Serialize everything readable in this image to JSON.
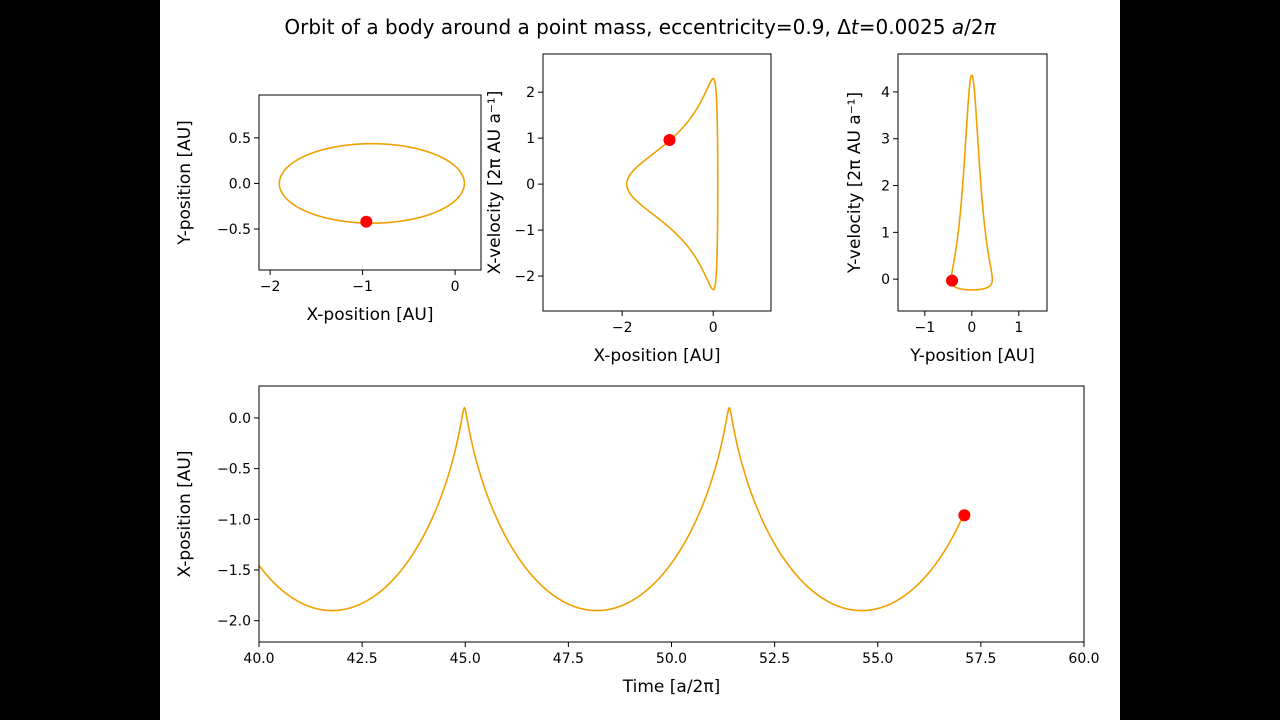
{
  "title_parts": [
    {
      "text": "Orbit of a body around a point mass, eccentricity=0.9, Δ",
      "italic": false
    },
    {
      "text": "t",
      "italic": true
    },
    {
      "text": "=0.0025 ",
      "italic": false
    },
    {
      "text": "a",
      "italic": true
    },
    {
      "text": "/2",
      "italic": false
    },
    {
      "text": "π",
      "italic": true
    }
  ],
  "colors": {
    "curve": "#f0a000",
    "marker": "#ff0000",
    "background": "#ffffff",
    "letterbox": "#000000"
  },
  "chart_data": [
    {
      "type": "line",
      "xlabel": "X-position [AU]",
      "ylabel": "Y-position [AU]",
      "xlim": [
        -2.12,
        0.28
      ],
      "ylim": [
        -0.95,
        0.97
      ],
      "xticks": [
        {
          "v": -2,
          "label": "−2"
        },
        {
          "v": -1,
          "label": "−1"
        },
        {
          "v": 0,
          "label": "0"
        }
      ],
      "yticks": [
        {
          "v": 0.5,
          "label": "0.5"
        },
        {
          "v": 0,
          "label": "0.0"
        },
        {
          "v": -0.5,
          "label": "−0.5"
        }
      ],
      "x_var": "x",
      "y_var": "y",
      "marker": {
        "x": -0.96,
        "y": -0.42
      }
    },
    {
      "type": "line",
      "xlabel": "X-position [AU]",
      "ylabel": "X-velocity [2π AU a⁻¹]",
      "xlim": [
        -3.74,
        1.27
      ],
      "ylim": [
        -2.76,
        2.83
      ],
      "xticks": [
        {
          "v": -2,
          "label": "−2"
        },
        {
          "v": 0,
          "label": "0"
        }
      ],
      "yticks": [
        {
          "v": 2,
          "label": "2"
        },
        {
          "v": 1,
          "label": "1"
        },
        {
          "v": 0,
          "label": "0"
        },
        {
          "v": -1,
          "label": "−1"
        },
        {
          "v": -2,
          "label": "−2"
        }
      ],
      "x_var": "x",
      "y_var": "vx",
      "marker": {
        "x": -0.96,
        "y": 0.96
      }
    },
    {
      "type": "line",
      "xlabel": "Y-position [AU]",
      "ylabel": "Y-velocity [2π AU a⁻¹]",
      "xlim": [
        -1.57,
        1.6
      ],
      "ylim": [
        -0.68,
        4.81
      ],
      "xticks": [
        {
          "v": -1,
          "label": "−1"
        },
        {
          "v": 0,
          "label": "0"
        },
        {
          "v": 1,
          "label": "1"
        }
      ],
      "yticks": [
        {
          "v": 4,
          "label": "4"
        },
        {
          "v": 3,
          "label": "3"
        },
        {
          "v": 2,
          "label": "2"
        },
        {
          "v": 1,
          "label": "1"
        },
        {
          "v": 0,
          "label": "0"
        }
      ],
      "x_var": "y",
      "y_var": "vy",
      "marker": {
        "x": -0.42,
        "y": -0.03
      }
    },
    {
      "type": "line",
      "xlabel": "Time [a/2π]",
      "ylabel": "X-position [AU]",
      "xlim": [
        40,
        60
      ],
      "ylim": [
        -2.21,
        0.315
      ],
      "xticks": [
        {
          "v": 40,
          "label": "40.0"
        },
        {
          "v": 42.5,
          "label": "42.5"
        },
        {
          "v": 45,
          "label": "45.0"
        },
        {
          "v": 47.5,
          "label": "47.5"
        },
        {
          "v": 50,
          "label": "50.0"
        },
        {
          "v": 52.5,
          "label": "52.5"
        },
        {
          "v": 55,
          "label": "55.0"
        },
        {
          "v": 57.5,
          "label": "57.5"
        },
        {
          "v": 60,
          "label": "60.0"
        }
      ],
      "yticks": [
        {
          "v": 0,
          "label": "0.0"
        },
        {
          "v": -0.5,
          "label": "−0.5"
        },
        {
          "v": -1,
          "label": "−1.0"
        },
        {
          "v": -1.5,
          "label": "−1.5"
        },
        {
          "v": -2,
          "label": "−2.0"
        }
      ],
      "x_var": "t",
      "y_var": "x",
      "t_range": [
        40,
        57.1
      ],
      "marker": {
        "x": 57.1,
        "y": -0.96
      }
    }
  ],
  "orbit": {
    "eccentricity": 0.9,
    "semi_major_axis": 1,
    "period": 6.42,
    "periapsis_time": 44.98,
    "minimum_x": -1.9,
    "maximum_x": 0.1,
    "max_speed": 4.36
  }
}
